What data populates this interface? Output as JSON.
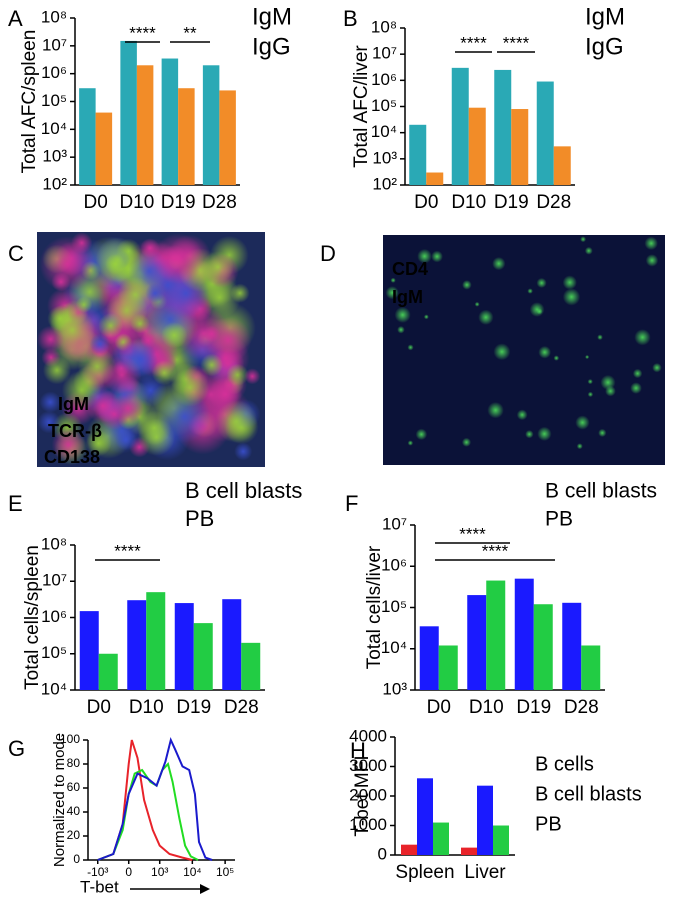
{
  "chart_data": [
    {
      "type": "bar",
      "panel": "A",
      "ylabel": "Total AFC/spleen",
      "yscale": "log",
      "categories": [
        "D0",
        "D10",
        "D19",
        "D28"
      ],
      "series": [
        {
          "name": "IgM",
          "color": "#2aa9b5",
          "values": [
            300000,
            15000000,
            3500000,
            2000000
          ]
        },
        {
          "name": "IgG",
          "color": "#f28c28",
          "values": [
            40000,
            2000000,
            300000,
            250000
          ]
        }
      ],
      "ylim": [
        100,
        100000000
      ],
      "yticks": [
        {
          "value": 100,
          "label": "10²"
        },
        {
          "value": 1000,
          "label": "10³"
        },
        {
          "value": 10000,
          "label": "10⁴"
        },
        {
          "value": 100000,
          "label": "10⁵"
        },
        {
          "value": 1000000,
          "label": "10⁶"
        },
        {
          "value": 10000000,
          "label": "10⁷"
        },
        {
          "value": 100000000,
          "label": "10⁸"
        }
      ],
      "annotations": [
        "****",
        "**"
      ]
    },
    {
      "type": "bar",
      "panel": "B",
      "ylabel": "Total AFC/liver",
      "yscale": "log",
      "categories": [
        "D0",
        "D10",
        "D19",
        "D28"
      ],
      "series": [
        {
          "name": "IgM",
          "color": "#2aa9b5",
          "values": [
            20000,
            3000000,
            2500000,
            900000
          ]
        },
        {
          "name": "IgG",
          "color": "#f28c28",
          "values": [
            300,
            90000,
            80000,
            3000
          ]
        }
      ],
      "ylim": [
        100,
        100000000
      ],
      "yticks": [
        {
          "value": 100,
          "label": "10²"
        },
        {
          "value": 1000,
          "label": "10³"
        },
        {
          "value": 10000,
          "label": "10⁴"
        },
        {
          "value": 100000,
          "label": "10⁵"
        },
        {
          "value": 1000000,
          "label": "10⁶"
        },
        {
          "value": 10000000,
          "label": "10⁷"
        },
        {
          "value": 100000000,
          "label": "10⁸"
        }
      ],
      "annotations": [
        "****",
        "****"
      ]
    },
    {
      "type": "image",
      "panel": "C",
      "labels": [
        {
          "text": "IgM",
          "color": "#4d6fe0"
        },
        {
          "text": "TCR-β",
          "color": "#3ad17a"
        },
        {
          "text": "CD138",
          "color": "#e0203a"
        }
      ]
    },
    {
      "type": "image",
      "panel": "D",
      "labels": [
        {
          "text": "CD4",
          "color": "#3c6ed8"
        },
        {
          "text": "IgM",
          "color": "#4ed45a"
        }
      ]
    },
    {
      "type": "bar",
      "panel": "E",
      "ylabel": "Total cells/spleen",
      "yscale": "log",
      "categories": [
        "D0",
        "D10",
        "D19",
        "D28"
      ],
      "series": [
        {
          "name": "B cell blasts",
          "color": "#1a1aff",
          "values": [
            1500000,
            3000000,
            2500000,
            3200000
          ]
        },
        {
          "name": "PB",
          "color": "#22cc44",
          "values": [
            100000,
            5000000,
            700000,
            200000
          ]
        }
      ],
      "ylim": [
        10000,
        100000000
      ],
      "yticks": [
        {
          "value": 10000,
          "label": "10⁴"
        },
        {
          "value": 100000,
          "label": "10⁵"
        },
        {
          "value": 1000000,
          "label": "10⁶"
        },
        {
          "value": 10000000,
          "label": "10⁷"
        },
        {
          "value": 100000000,
          "label": "10⁸"
        }
      ],
      "annotations": [
        "****"
      ]
    },
    {
      "type": "bar",
      "panel": "F",
      "ylabel": "Total cells/liver",
      "yscale": "log",
      "categories": [
        "D0",
        "D10",
        "D19",
        "D28"
      ],
      "series": [
        {
          "name": "B cell blasts",
          "color": "#1a1aff",
          "values": [
            35000,
            200000,
            500000,
            130000
          ]
        },
        {
          "name": "PB",
          "color": "#22cc44",
          "values": [
            12000,
            450000,
            120000,
            12000
          ]
        }
      ],
      "ylim": [
        1000,
        10000000
      ],
      "yticks": [
        {
          "value": 1000,
          "label": "10³"
        },
        {
          "value": 10000,
          "label": "10⁴"
        },
        {
          "value": 100000,
          "label": "10⁵"
        },
        {
          "value": 1000000,
          "label": "10⁶"
        },
        {
          "value": 10000000,
          "label": "10⁷"
        }
      ],
      "annotations": [
        "****",
        "****"
      ]
    },
    {
      "type": "line",
      "panel": "G",
      "ylabel": "Normalized to mode",
      "xlabel": "T-bet",
      "xscale": "asinh",
      "series": [
        {
          "color": "#e8232a",
          "x": [
            -1000,
            -300,
            -100,
            0,
            50,
            150,
            300,
            600,
            1000,
            2000,
            5000,
            10000
          ],
          "values": [
            0,
            5,
            30,
            80,
            100,
            85,
            50,
            25,
            12,
            5,
            2,
            0
          ]
        },
        {
          "color": "#22dd22",
          "x": [
            -1000,
            -300,
            -100,
            0,
            100,
            250,
            500,
            800,
            1200,
            1800,
            2500,
            4000,
            6000,
            9000,
            15000
          ],
          "values": [
            0,
            5,
            25,
            55,
            72,
            75,
            65,
            62,
            75,
            80,
            65,
            35,
            12,
            3,
            0
          ]
        },
        {
          "color": "#1a1acc",
          "x": [
            -1000,
            -300,
            -100,
            0,
            150,
            400,
            800,
            1500,
            2200,
            3000,
            5000,
            8000,
            12000,
            16000,
            25000,
            40000
          ],
          "values": [
            0,
            5,
            30,
            55,
            72,
            68,
            62,
            82,
            100,
            92,
            78,
            75,
            55,
            15,
            2,
            0
          ]
        }
      ],
      "xlim": [
        -2000,
        200000
      ],
      "xticks": [
        {
          "value": -1000,
          "label": "-10³"
        },
        0,
        {
          "value": 1000,
          "label": "10³"
        },
        {
          "value": 10000,
          "label": "10⁴"
        },
        {
          "value": 100000,
          "label": "10⁵"
        }
      ],
      "ylim": [
        0,
        100
      ],
      "yticks": [
        0,
        20,
        40,
        60,
        80,
        100
      ]
    },
    {
      "type": "bar",
      "panel": "H",
      "ylabel": "T-bet MFI",
      "categories": [
        "Spleen",
        "Liver"
      ],
      "series": [
        {
          "name": "B cells",
          "color": "#e8232a",
          "values": [
            350,
            250
          ]
        },
        {
          "name": "B cell blasts",
          "color": "#1a1aff",
          "values": [
            2600,
            2350
          ]
        },
        {
          "name": "PB",
          "color": "#22cc44",
          "values": [
            1100,
            1000
          ]
        }
      ],
      "ylim": [
        0,
        4000
      ],
      "yticks": [
        0,
        1000,
        2000,
        3000,
        4000
      ]
    }
  ]
}
